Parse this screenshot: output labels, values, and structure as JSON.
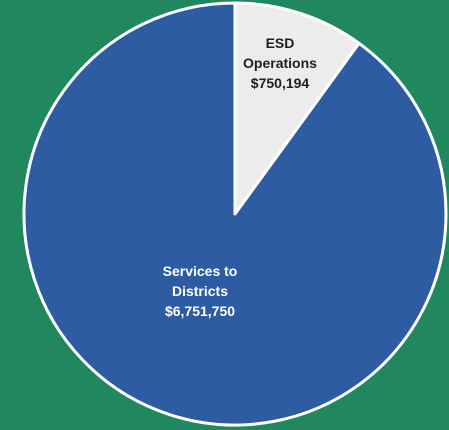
{
  "page": {
    "background": "#21875f"
  },
  "chart_data": {
    "type": "pie",
    "start_angle_deg": 0,
    "direction": "clockwise",
    "slices": [
      {
        "label_lines": [
          "ESD",
          "Operations",
          "$750,194"
        ],
        "value": 750194,
        "color": "#ececec",
        "text_color": "#1f1f1f"
      },
      {
        "label_lines": [
          "Services to",
          "Districts",
          "$6,751,750"
        ],
        "value": 6751750,
        "color": "#2e5ca2",
        "text_color": "#ffffff"
      }
    ],
    "slice_border_color": "#ffffff"
  }
}
